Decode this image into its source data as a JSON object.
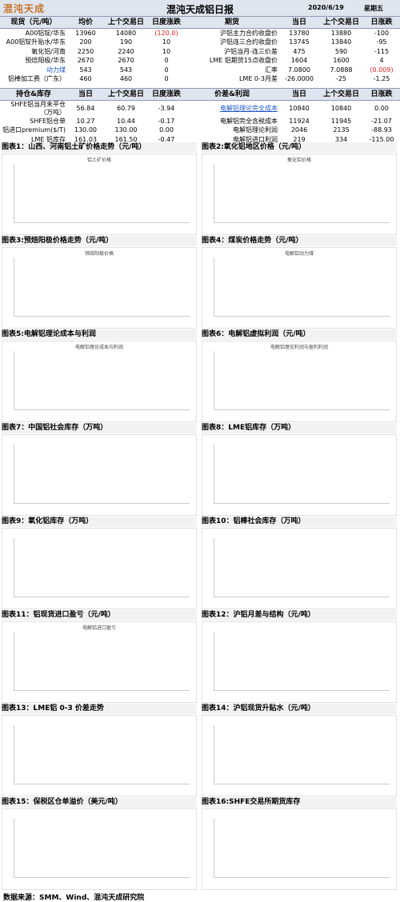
{
  "header": {
    "logo": "混沌天成",
    "title": "混沌天成铝日报",
    "date": "2020/6/19",
    "weekday": "星期五"
  },
  "table1": {
    "headers": [
      "现货（元/吨）",
      "均价",
      "上个交易日",
      "日度涨跌",
      "期货",
      "当日",
      "上个交易日",
      "日涨跌"
    ],
    "rows": [
      [
        "A00铝锭/华东",
        "13960",
        "14080",
        "(120.0)",
        "沪铝主力合约收盘价",
        "13780",
        "13880",
        "-100"
      ],
      [
        "A00铝锭升贴水/华东",
        "200",
        "190",
        "10",
        "沪铝连三合约收盘价",
        "13745",
        "13840",
        "-95"
      ],
      [
        "氧化铝/河南",
        "2250",
        "2240",
        "10",
        "沪铝当月-连三价差",
        "475",
        "590",
        "-115"
      ],
      [
        "预焙阳极/华东",
        "2670",
        "2670",
        "0",
        "LME 铝期货15点收盘价",
        "1604",
        "1600",
        "4"
      ],
      [
        "动力煤",
        "543",
        "543",
        "0",
        "汇率",
        "7.0800",
        "7.0888",
        "(0.009)"
      ],
      [
        "铝棒加工费（广东）",
        "460",
        "460",
        "0",
        "LME 0-3月差",
        "-26.0000",
        "-25",
        "-1.25"
      ]
    ]
  },
  "table2": {
    "headers": [
      "持仓&库存",
      "当日",
      "上个交易日",
      "日度涨跌",
      "价差&利润",
      "当日",
      "上个交易日",
      "日涨跌"
    ],
    "rows": [
      [
        "SHFE铝当月未平仓（万吨）",
        "56.84",
        "60.79",
        "-3.94",
        "电解铝理论完全成本",
        "10840",
        "10840",
        "0.00"
      ],
      [
        "SHFE铝仓单",
        "10.27",
        "10.44",
        "-0.17",
        "电解铝完全含税成本",
        "11924",
        "11945",
        "-21.07"
      ],
      [
        "铝进口premium($/T)",
        "130.00",
        "130.00",
        "0.00",
        "电解铝理论利润",
        "2046",
        "2135",
        "-88.93"
      ],
      [
        "LME 铝库存",
        "161.03",
        "161.50",
        "-0.47",
        "电解铝进口利润",
        "219",
        "334",
        "-115.00"
      ]
    ]
  },
  "figures": [
    {
      "caption": "图表1：山西、河南铝土矿价格走势（元/吨）",
      "inner_title": "铝土矿价格"
    },
    {
      "caption": "图表2:氧化铝地区价格（元/吨）",
      "inner_title": "氧化铝价格"
    },
    {
      "caption": "图表3:预焙阳极价格走势（元/吨）",
      "inner_title": "预焙阳极价格"
    },
    {
      "caption": "图表4：煤炭价格走势（元/吨）",
      "inner_title": "电解铝动力煤"
    },
    {
      "caption": "图表5:电解铝理论成本与利润",
      "inner_title": "电解铝理论成本与利润"
    },
    {
      "caption": "图表6：电解铝虚拟利润（元/吨）",
      "inner_title": "电解铝理论利润与盈利利润"
    },
    {
      "caption": "图表7：中国铝社会库存（万吨）"
    },
    {
      "caption": "图表8：LME铝库存（万吨）"
    },
    {
      "caption": "图表9：氧化铝库存（万吨）"
    },
    {
      "caption": "图表10：铝棒社会库存（万吨）"
    },
    {
      "caption": "图表11：铝现货进口盈亏（元/吨）",
      "inner_title": "电解铝进口盈亏"
    },
    {
      "caption": "图表12：沪铝月差与结构（元/吨）"
    },
    {
      "caption": "图表13：LME铝 0-3 价差走势"
    },
    {
      "caption": "图表14：沪铝现货升贴水（元/吨）"
    },
    {
      "caption": "图表15：保税区仓单溢价（美元/吨）"
    },
    {
      "caption": "图表16:SHFE交易所期货库存"
    }
  ],
  "footer": "数据来源：SMM、Wind、混沌天成研究院"
}
